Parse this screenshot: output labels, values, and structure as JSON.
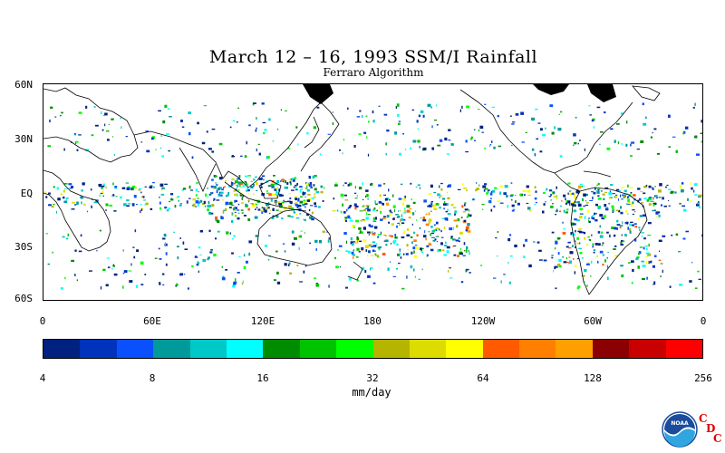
{
  "title": "March 12 – 16, 1993 SSM/I Rainfall",
  "subtitle": "Ferraro Algorithm",
  "latitude_labels": [
    "60N",
    "30N",
    "EQ",
    "30S",
    "60S"
  ],
  "longitude_labels": [
    "0",
    "60E",
    "120E",
    "180",
    "120W",
    "60W",
    "0"
  ],
  "colorbar": {
    "colors": [
      "#00217f",
      "#0033bb",
      "#0a50ff",
      "#009a9a",
      "#00c8c8",
      "#00ffff",
      "#008c00",
      "#00c300",
      "#00ff00",
      "#b5b500",
      "#dcdc00",
      "#ffff00",
      "#ff5a00",
      "#ff7f00",
      "#ffa000",
      "#8b0000",
      "#c80000",
      "#ff0000"
    ],
    "tick_labels": [
      "4",
      "8",
      "16",
      "32",
      "64",
      "128",
      "256"
    ],
    "units": "mm/day"
  },
  "logo": {
    "icon": "noaa-logo-icon",
    "text": "NOAA",
    "cdc_letters": [
      "C",
      "D",
      "C"
    ]
  }
}
